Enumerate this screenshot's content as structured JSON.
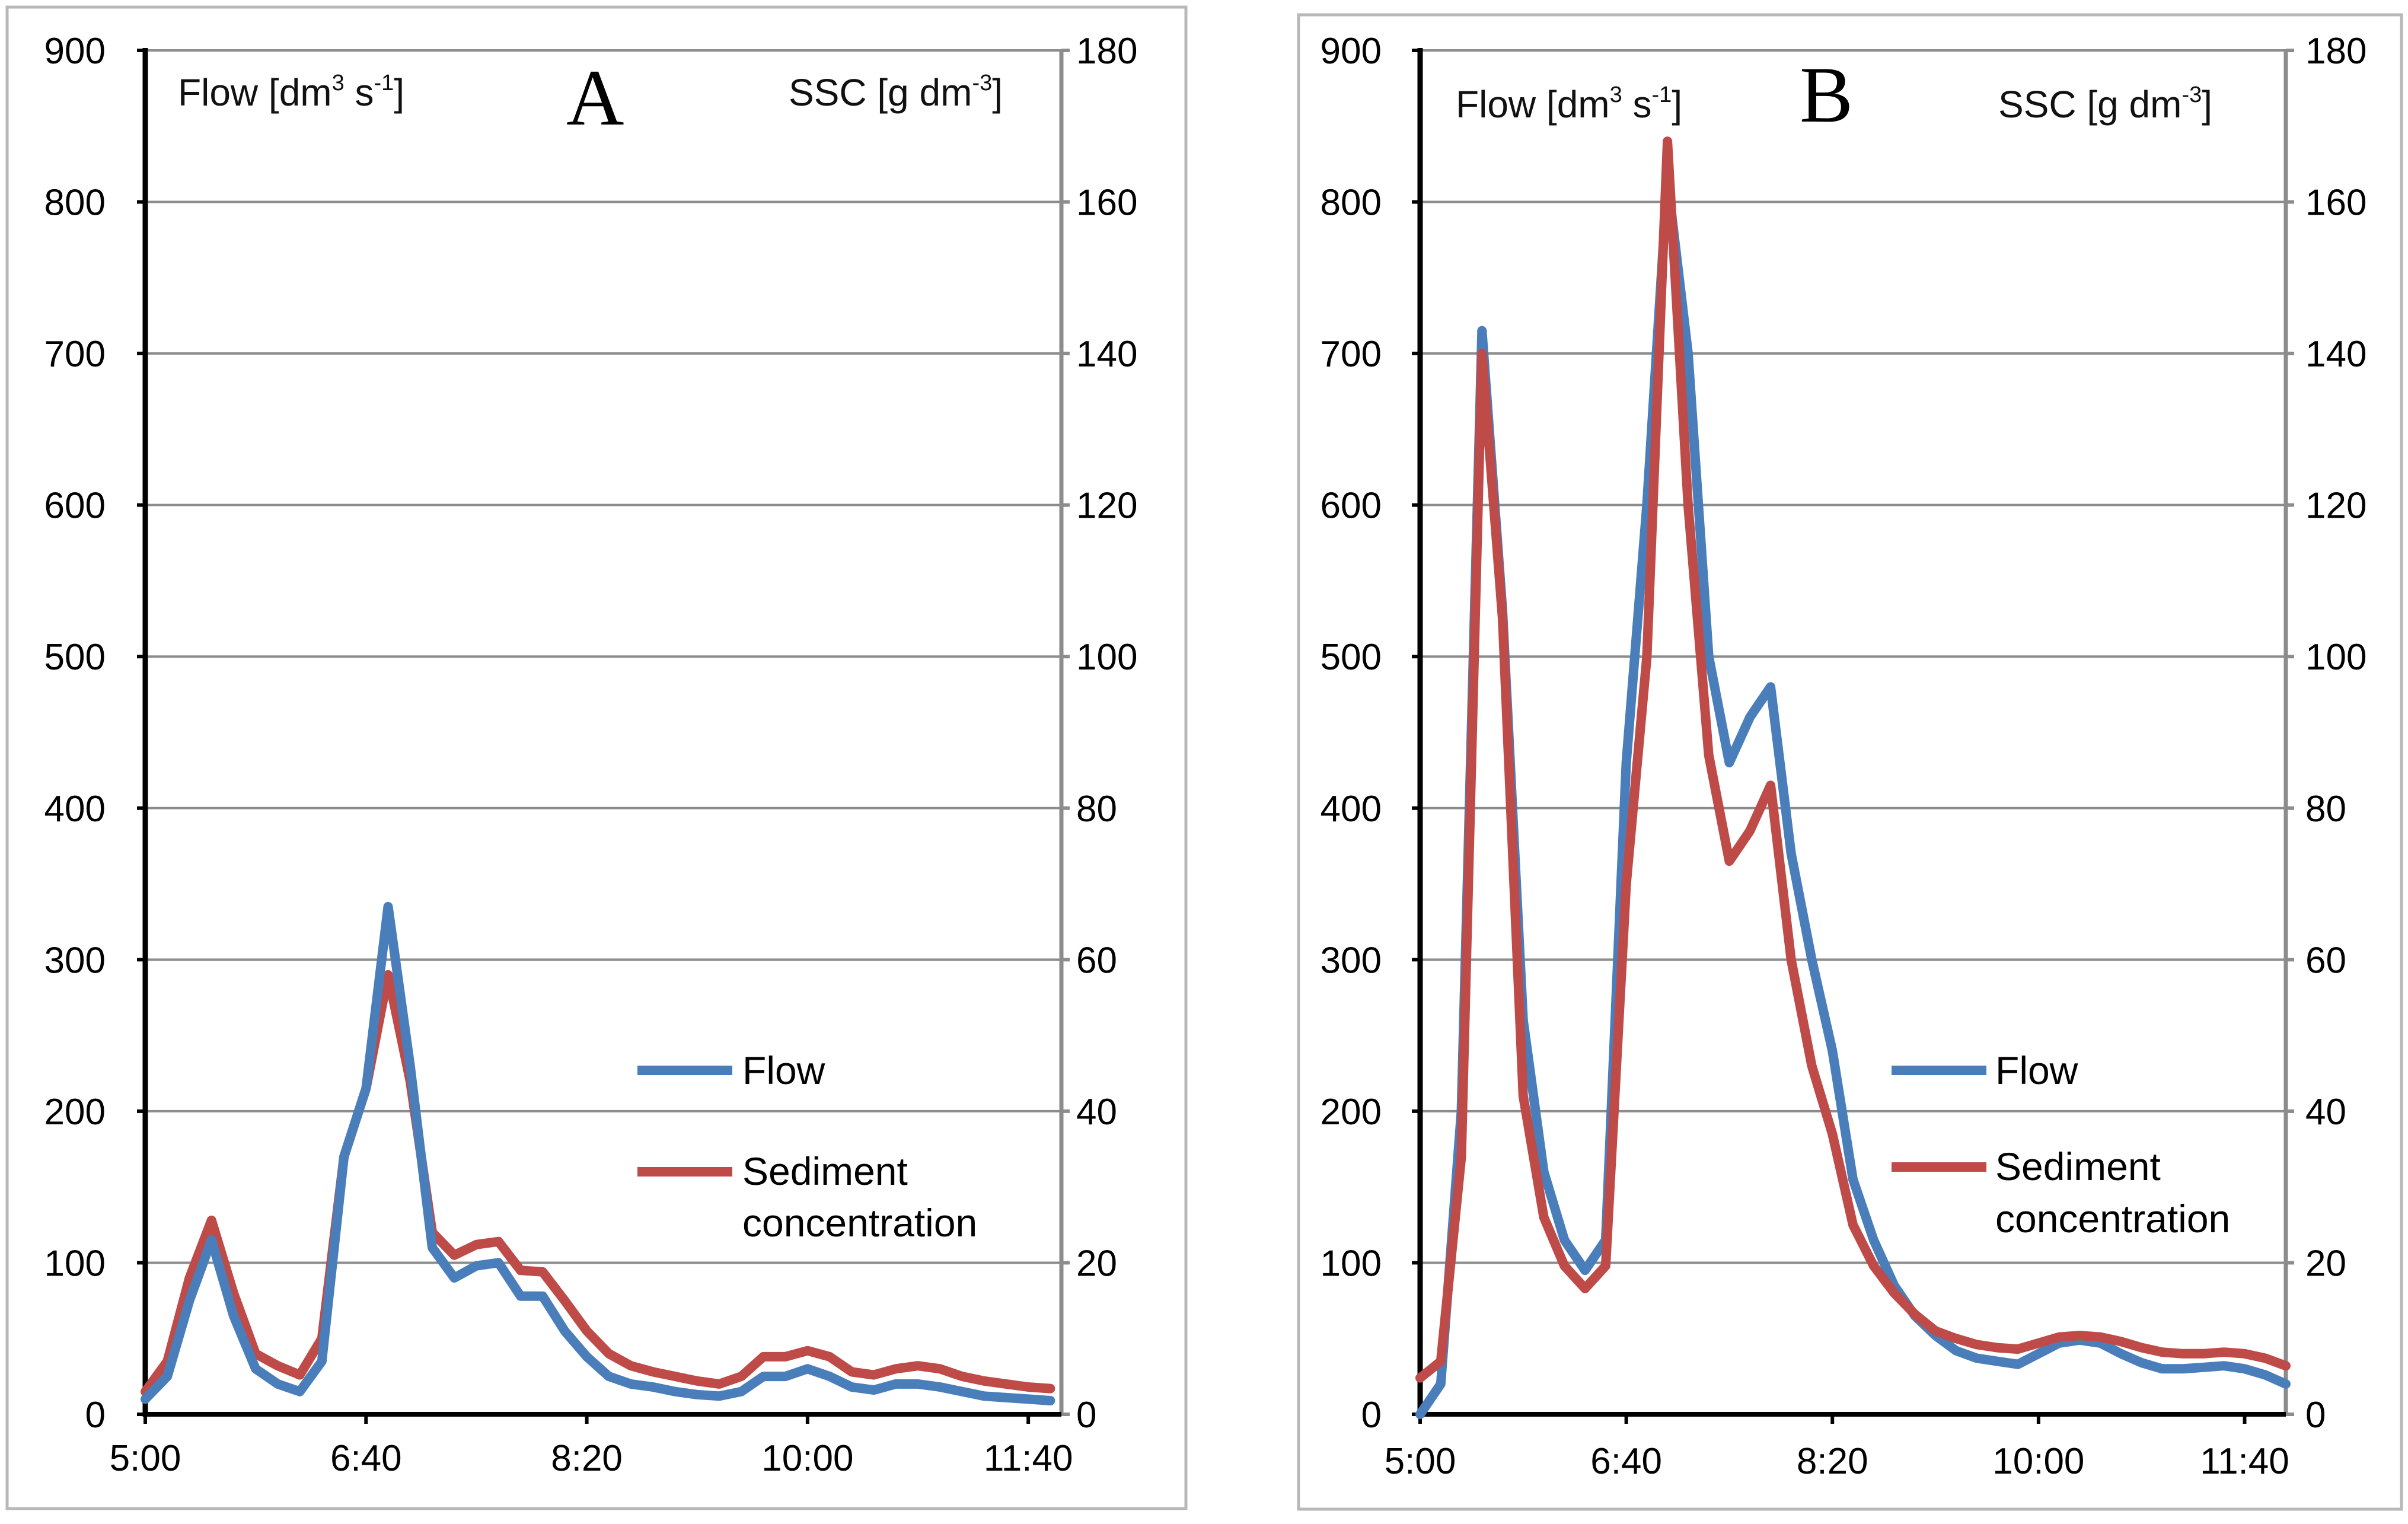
{
  "colors": {
    "flow": "#4a7ebb",
    "sediment": "#be4b48"
  },
  "chart_data": [
    {
      "type": "line",
      "title": "A",
      "ylabel_left": "Flow [dm",
      "ylabel_left_sup1": "3",
      "ylabel_left_mid": " s",
      "ylabel_left_sup2": "-1",
      "ylabel_left_end": "]",
      "ylabel_right": "SSC [g dm",
      "ylabel_right_sup": "-3",
      "ylabel_right_end": "]",
      "ylim_left": [
        0,
        900
      ],
      "ylim_right": [
        0,
        180
      ],
      "y_ticks_left": [
        "0",
        "100",
        "200",
        "300",
        "400",
        "500",
        "600",
        "700",
        "800",
        "900"
      ],
      "y_ticks_right": [
        "0",
        "20",
        "40",
        "60",
        "80",
        "100",
        "120",
        "140",
        "160",
        "180"
      ],
      "x_ticks": [
        {
          "label": "5:00",
          "minutes": 300
        },
        {
          "label": "6:40",
          "minutes": 400
        },
        {
          "label": "8:20",
          "minutes": 500
        },
        {
          "label": "10:00",
          "minutes": 600
        },
        {
          "label": "11:40",
          "minutes": 700
        }
      ],
      "x_range_minutes": [
        300,
        715
      ],
      "legend": [
        "Flow",
        "Sediment",
        "concentration"
      ],
      "series": [
        {
          "name": "Flow",
          "axis": "left",
          "x_minutes": [
            300,
            310,
            320,
            330,
            340,
            350,
            360,
            370,
            380,
            390,
            400,
            410,
            420,
            430,
            440,
            450,
            460,
            470,
            480,
            490,
            500,
            510,
            520,
            530,
            540,
            550,
            560,
            570,
            580,
            590,
            600,
            610,
            620,
            630,
            640,
            650,
            660,
            670,
            680,
            690,
            700,
            710
          ],
          "values": [
            10,
            25,
            75,
            115,
            65,
            30,
            20,
            15,
            35,
            170,
            215,
            335,
            230,
            110,
            90,
            98,
            100,
            78,
            78,
            55,
            38,
            25,
            20,
            18,
            15,
            13,
            12,
            15,
            25,
            25,
            30,
            25,
            18,
            16,
            20,
            20,
            18,
            15,
            12,
            11,
            10,
            9
          ]
        },
        {
          "name": "Sediment concentration",
          "axis": "right",
          "x_minutes": [
            300,
            310,
            320,
            330,
            340,
            350,
            360,
            370,
            380,
            390,
            400,
            410,
            420,
            430,
            440,
            450,
            460,
            470,
            480,
            490,
            500,
            510,
            520,
            530,
            540,
            550,
            560,
            570,
            580,
            590,
            600,
            610,
            620,
            630,
            640,
            650,
            660,
            670,
            680,
            690,
            700,
            710
          ],
          "values": [
            3,
            7,
            18,
            25.6,
            16,
            8,
            6.4,
            5.2,
            10,
            34,
            43,
            58,
            44,
            24,
            21,
            22.4,
            22.8,
            19,
            18.8,
            15,
            11,
            8,
            6.4,
            5.6,
            5,
            4.4,
            4,
            5,
            7.6,
            7.6,
            8.4,
            7.6,
            5.6,
            5.2,
            6,
            6.4,
            6,
            5,
            4.4,
            4,
            3.6,
            3.4
          ]
        }
      ]
    },
    {
      "type": "line",
      "title": "B",
      "ylabel_left": "Flow [dm",
      "ylabel_left_sup1": "3",
      "ylabel_left_mid": " s",
      "ylabel_left_sup2": "-1",
      "ylabel_left_end": "]",
      "ylabel_right": "SSC [g dm",
      "ylabel_right_sup": "-3",
      "ylabel_right_end": "]",
      "ylim_left": [
        0,
        900
      ],
      "ylim_right": [
        0,
        180
      ],
      "y_ticks_left": [
        "0",
        "100",
        "200",
        "300",
        "400",
        "500",
        "600",
        "700",
        "800",
        "900"
      ],
      "y_ticks_right": [
        "0",
        "20",
        "40",
        "60",
        "80",
        "100",
        "120",
        "140",
        "160",
        "180"
      ],
      "x_ticks": [
        {
          "label": "5:00",
          "minutes": 300
        },
        {
          "label": "6:40",
          "minutes": 400
        },
        {
          "label": "8:20",
          "minutes": 500
        },
        {
          "label": "10:00",
          "minutes": 600
        },
        {
          "label": "11:40",
          "minutes": 700
        }
      ],
      "x_range_minutes": [
        300,
        720
      ],
      "legend": [
        "Flow",
        "Sediment",
        "concentration"
      ],
      "series": [
        {
          "name": "Flow",
          "axis": "left",
          "x_minutes": [
            300,
            310,
            320,
            330,
            340,
            350,
            360,
            370,
            380,
            390,
            400,
            410,
            420,
            430,
            440,
            450,
            460,
            470,
            480,
            490,
            500,
            510,
            520,
            530,
            540,
            550,
            560,
            570,
            580,
            590,
            600,
            610,
            620,
            630,
            640,
            650,
            660,
            670,
            680,
            690,
            700,
            710,
            720
          ],
          "values": [
            0,
            20,
            200,
            715,
            530,
            260,
            160,
            115,
            95,
            115,
            430,
            600,
            815,
            700,
            500,
            430,
            460,
            480,
            370,
            300,
            240,
            155,
            115,
            85,
            65,
            52,
            42,
            37,
            35,
            33,
            40,
            47,
            49,
            47,
            40,
            34,
            30,
            30,
            31,
            32,
            30,
            26,
            20
          ]
        },
        {
          "name": "Sediment concentration",
          "axis": "right",
          "x_minutes": [
            300,
            310,
            320,
            330,
            340,
            350,
            360,
            370,
            380,
            390,
            400,
            410,
            420,
            430,
            440,
            450,
            460,
            470,
            480,
            490,
            500,
            510,
            520,
            530,
            540,
            550,
            560,
            570,
            580,
            590,
            600,
            610,
            620,
            630,
            640,
            650,
            660,
            670,
            680,
            690,
            700,
            710,
            720
          ],
          "values": [
            4.8,
            7,
            34,
            140,
            105,
            42,
            26,
            19.6,
            16.6,
            19.6,
            70,
            100,
            168,
            120,
            87,
            73,
            77,
            83,
            60,
            46,
            37,
            25,
            19.6,
            16,
            13.2,
            11,
            10,
            9.2,
            8.8,
            8.6,
            9.4,
            10.2,
            10.4,
            10.2,
            9.6,
            8.8,
            8.2,
            8,
            8,
            8.2,
            8,
            7.4,
            6.4
          ]
        }
      ]
    }
  ]
}
